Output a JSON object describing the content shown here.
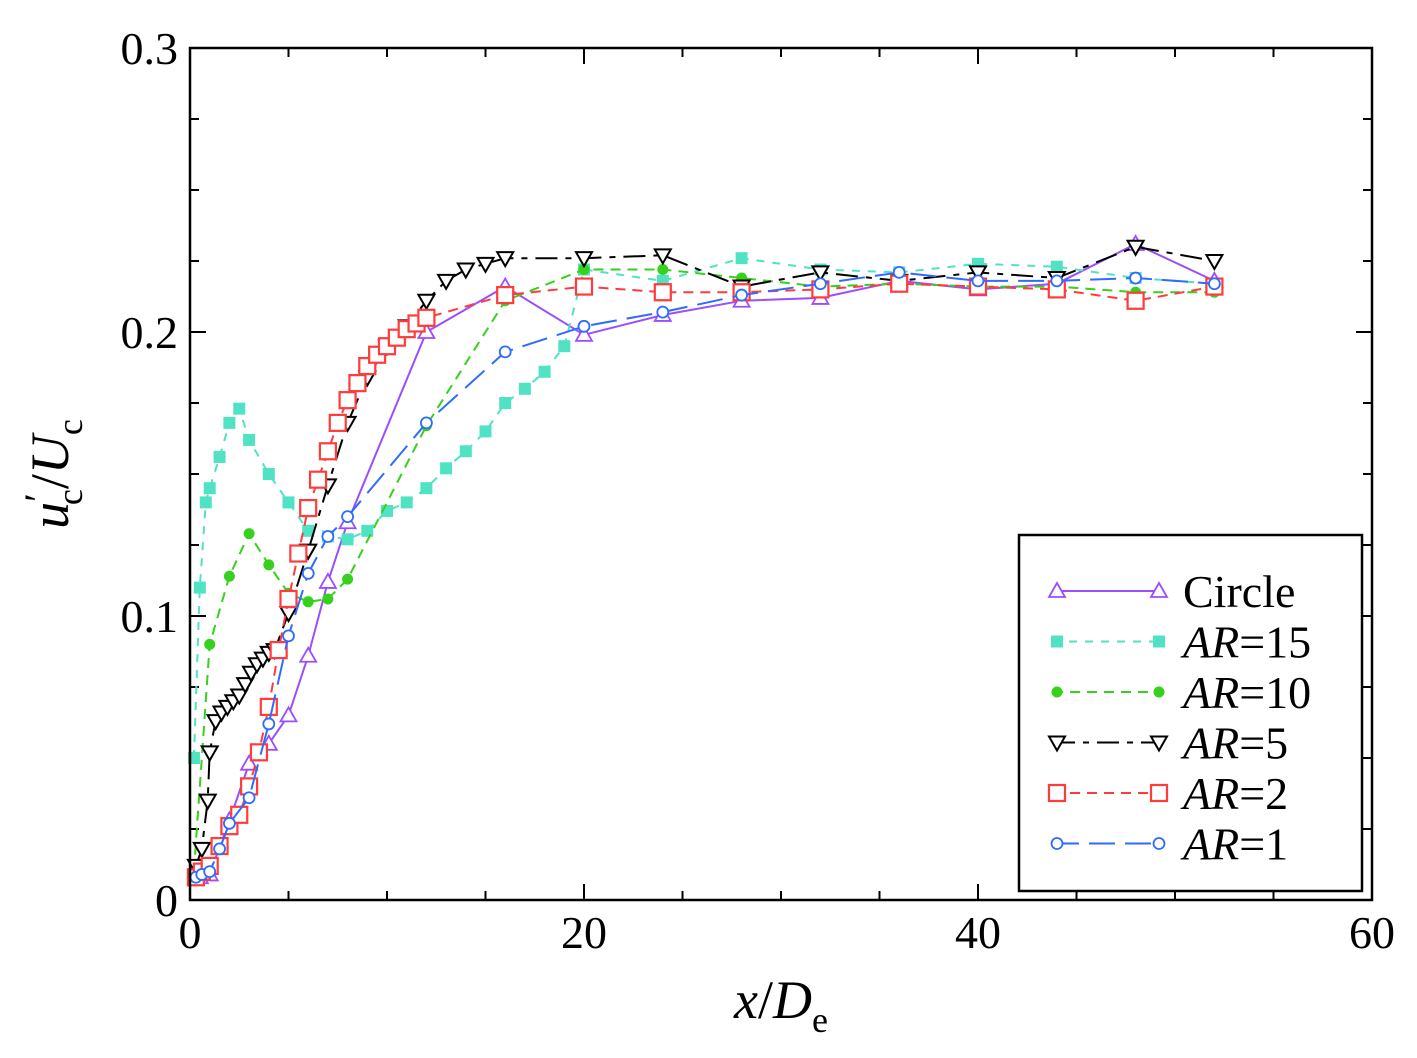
{
  "chart_data": {
    "type": "line",
    "title": "",
    "xlabel": {
      "var": "x",
      "slash": "/",
      "var2": "D",
      "sub": "e"
    },
    "ylabel": {
      "var": "u",
      "prime": "′",
      "sub": "c",
      "slash": "/",
      "var2": "U",
      "sub2": "c"
    },
    "xlim": [
      0,
      60
    ],
    "ylim": [
      0,
      0.3
    ],
    "xticks": [
      0,
      20,
      40,
      60
    ],
    "xtick_labels": [
      "0",
      "20",
      "40",
      "60"
    ],
    "yticks": [
      0,
      0.1,
      0.2,
      0.3
    ],
    "ytick_labels": [
      "0",
      "0.1",
      "0.2",
      "0.3"
    ],
    "legend_position": "bottom-right",
    "grid": false,
    "series": [
      {
        "name": "Circle",
        "legend_prefix": "",
        "legend_suffix": "Circle",
        "color": "#9b4dff",
        "marker": "triangle-up",
        "dash": "none",
        "x": [
          0.5,
          1,
          2,
          3,
          4,
          5,
          6,
          7,
          8,
          12,
          16,
          20,
          24,
          28,
          32,
          36,
          40,
          44,
          48,
          52
        ],
        "y": [
          0.008,
          0.009,
          0.028,
          0.048,
          0.055,
          0.065,
          0.086,
          0.112,
          0.133,
          0.2,
          0.216,
          0.199,
          0.206,
          0.211,
          0.212,
          0.218,
          0.215,
          0.217,
          0.231,
          0.218
        ]
      },
      {
        "name": "AR=15",
        "legend_prefix": "AR",
        "legend_suffix": "=15",
        "color": "#4fe3c4",
        "marker": "square-filled",
        "dash": "8,8",
        "x": [
          0.2,
          0.5,
          0.8,
          1,
          1.5,
          2,
          2.5,
          3,
          4,
          5,
          6,
          7,
          8,
          9,
          10,
          11,
          12,
          13,
          14,
          15,
          16,
          17,
          18,
          19,
          20,
          24,
          28,
          32,
          36,
          40,
          44,
          48,
          52
        ],
        "y": [
          0.05,
          0.11,
          0.14,
          0.145,
          0.156,
          0.168,
          0.173,
          0.162,
          0.15,
          0.14,
          0.13,
          0.128,
          0.127,
          0.13,
          0.137,
          0.14,
          0.145,
          0.152,
          0.158,
          0.165,
          0.175,
          0.18,
          0.186,
          0.195,
          0.222,
          0.218,
          0.226,
          0.222,
          0.221,
          0.224,
          0.223,
          0.219,
          0.217
        ]
      },
      {
        "name": "AR=10",
        "legend_prefix": "AR",
        "legend_suffix": "=10",
        "color": "#36d11c",
        "marker": "circle-filled",
        "dash": "10,7",
        "x": [
          0.2,
          1,
          2,
          3,
          4,
          5,
          6,
          7,
          8,
          12,
          16,
          20,
          24,
          28,
          32,
          36,
          40,
          44,
          48,
          52
        ],
        "y": [
          0.01,
          0.09,
          0.114,
          0.129,
          0.118,
          0.108,
          0.105,
          0.106,
          0.113,
          0.167,
          0.211,
          0.222,
          0.222,
          0.219,
          0.216,
          0.217,
          0.216,
          0.216,
          0.214,
          0.214
        ]
      },
      {
        "name": "AR=5",
        "legend_prefix": "AR",
        "legend_suffix": "=5",
        "color": "#000000",
        "marker": "triangle-down",
        "dash": "22,8,6,8",
        "x": [
          0.3,
          0.6,
          0.9,
          1,
          1.3,
          1.6,
          1.9,
          2.2,
          2.5,
          2.8,
          3.1,
          3.4,
          3.7,
          4,
          4.3,
          5,
          6,
          7,
          8,
          9,
          10,
          11,
          12,
          13,
          14,
          15,
          16,
          20,
          24,
          28,
          32,
          36,
          40,
          44,
          48,
          52
        ],
        "y": [
          0.012,
          0.018,
          0.035,
          0.052,
          0.063,
          0.066,
          0.068,
          0.07,
          0.072,
          0.076,
          0.08,
          0.083,
          0.085,
          0.087,
          0.088,
          0.101,
          0.123,
          0.146,
          0.168,
          0.184,
          0.195,
          0.202,
          0.211,
          0.218,
          0.222,
          0.224,
          0.226,
          0.226,
          0.227,
          0.216,
          0.221,
          0.218,
          0.221,
          0.219,
          0.23,
          0.225
        ]
      },
      {
        "name": "AR=2",
        "legend_prefix": "AR",
        "legend_suffix": "=2",
        "color": "#ff3b3b",
        "marker": "square-open",
        "dash": "10,7",
        "x": [
          0.3,
          0.6,
          1,
          1.5,
          2,
          2.5,
          3,
          3.5,
          4,
          4.5,
          5,
          5.5,
          6,
          6.5,
          7,
          7.5,
          8,
          8.5,
          9,
          9.5,
          10,
          10.5,
          11,
          11.5,
          12,
          16,
          20,
          24,
          28,
          32,
          36,
          40,
          44,
          48,
          52
        ],
        "y": [
          0.008,
          0.01,
          0.012,
          0.019,
          0.026,
          0.03,
          0.04,
          0.052,
          0.068,
          0.088,
          0.106,
          0.122,
          0.138,
          0.148,
          0.158,
          0.168,
          0.176,
          0.182,
          0.188,
          0.192,
          0.195,
          0.198,
          0.201,
          0.203,
          0.205,
          0.213,
          0.216,
          0.214,
          0.214,
          0.215,
          0.217,
          0.216,
          0.215,
          0.211,
          0.216
        ]
      },
      {
        "name": "AR=1",
        "legend_prefix": "AR",
        "legend_suffix": "=1",
        "color": "#2f6bff",
        "marker": "circle-open",
        "dash": "26,10",
        "x": [
          0.3,
          0.6,
          1,
          1.5,
          2,
          3,
          4,
          5,
          6,
          7,
          8,
          12,
          16,
          20,
          24,
          28,
          32,
          36,
          40,
          44,
          48,
          52
        ],
        "y": [
          0.008,
          0.009,
          0.01,
          0.018,
          0.027,
          0.036,
          0.062,
          0.093,
          0.115,
          0.128,
          0.135,
          0.168,
          0.193,
          0.202,
          0.207,
          0.213,
          0.217,
          0.221,
          0.218,
          0.218,
          0.219,
          0.217
        ]
      }
    ]
  }
}
